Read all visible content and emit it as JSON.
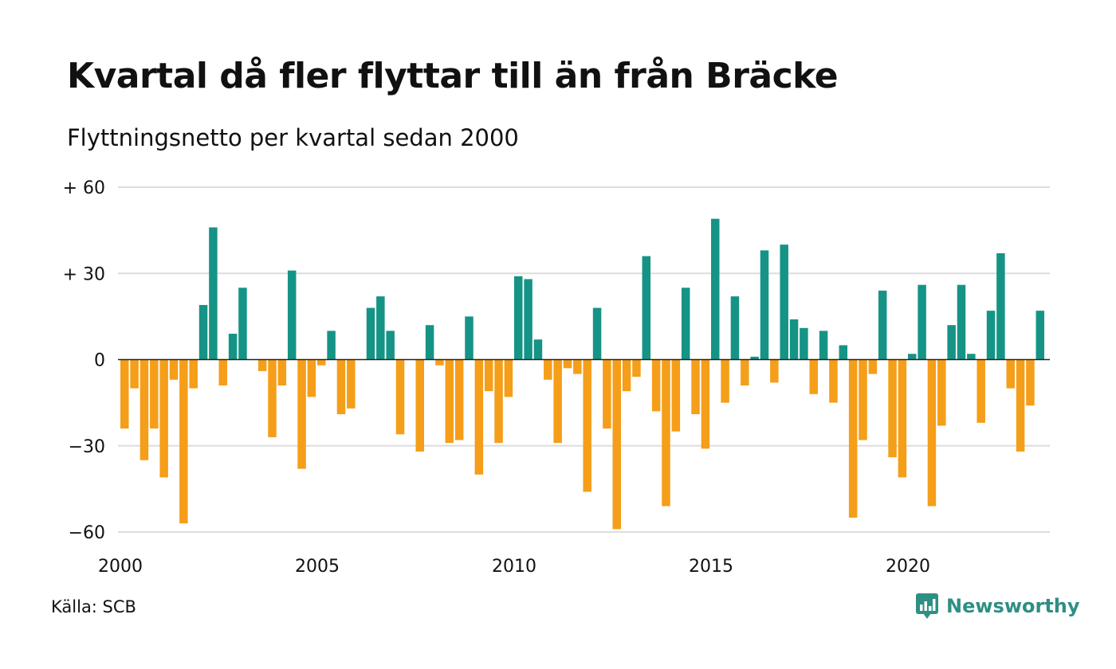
{
  "title": "Kvartal då fler flyttar till än från Bräcke",
  "subtitle": "Flyttningsnetto per kvartal sedan 2000",
  "source": "Källa: SCB",
  "brand": {
    "name": "Newsworthy",
    "icon": "newsworthy-logo-icon",
    "color": "#2e8f83"
  },
  "chart_data": {
    "type": "bar",
    "start_year": 2000,
    "quarters_per_year": 4,
    "ylim": [
      -60,
      60
    ],
    "yticks": [
      60,
      30,
      0,
      -30,
      -60
    ],
    "ytick_labels": [
      "+ 60",
      "+ 30",
      "0",
      "−30",
      "−60"
    ],
    "xticks": [
      "2000",
      "2005",
      "2010",
      "2015",
      "2020"
    ],
    "colors": {
      "positive": "#159486",
      "negative": "#f59e1a",
      "grid": "#dddddd",
      "zero_line": "#222222"
    },
    "grid": true,
    "values": [
      -24,
      -10,
      -35,
      -24,
      -41,
      -7,
      -57,
      -10,
      19,
      46,
      -9,
      9,
      25,
      0,
      -4,
      -27,
      -9,
      31,
      -38,
      -13,
      -2,
      10,
      -19,
      -17,
      0,
      18,
      22,
      10,
      -26,
      0,
      -32,
      12,
      -2,
      -29,
      -28,
      15,
      -40,
      -11,
      -29,
      -13,
      29,
      28,
      7,
      -7,
      -29,
      -3,
      -5,
      -46,
      18,
      -24,
      -59,
      -11,
      -6,
      36,
      -18,
      -51,
      -25,
      25,
      -19,
      -31,
      49,
      -15,
      22,
      -9,
      1,
      38,
      -8,
      40,
      14,
      11,
      -12,
      10,
      -15,
      5,
      -55,
      -28,
      -5,
      24,
      -34,
      -41,
      2,
      26,
      -51,
      -23,
      12,
      26,
      2,
      -22,
      17,
      37,
      -10,
      -32,
      -16,
      17
    ]
  }
}
